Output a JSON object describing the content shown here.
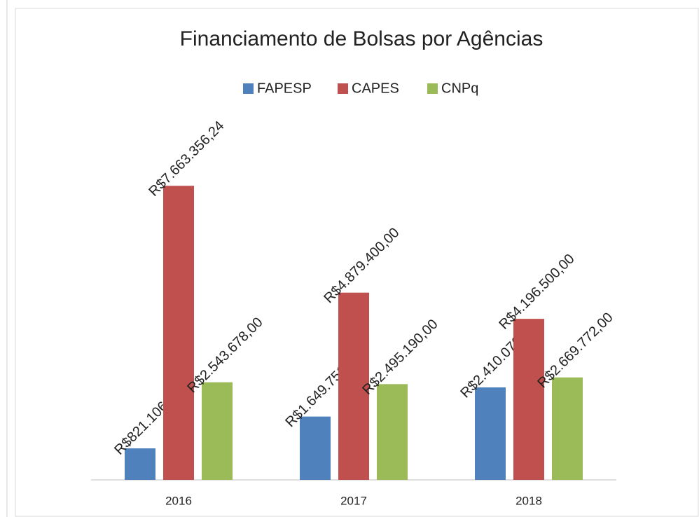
{
  "chart_data": {
    "type": "bar",
    "title": "Financiamento de Bolsas por Agências",
    "categories": [
      "2016",
      "2017",
      "2018"
    ],
    "series": [
      {
        "name": "FAPESP",
        "color": "#4f81bd",
        "values": [
          821106.2,
          1649751.89,
          2410076.46
        ],
        "value_labels": [
          "R$821.106,20",
          "R$1.649.751,89",
          "R$2.410.076,46"
        ]
      },
      {
        "name": "CAPES",
        "color": "#c0504d",
        "values": [
          7663356.24,
          4879400.0,
          4196500.0
        ],
        "value_labels": [
          "R$7.663.356,24",
          "R$4.879.400,00",
          "R$4.196.500,00"
        ]
      },
      {
        "name": "CNPq",
        "color": "#9bbb59",
        "values": [
          2543678.0,
          2495190.0,
          2669772.0
        ],
        "value_labels": [
          "R$2.543.678,00",
          "R$2.495.190,00",
          "R$2.669.772,00"
        ]
      }
    ],
    "ylim": [
      0,
      9000000
    ],
    "legend": "top"
  }
}
